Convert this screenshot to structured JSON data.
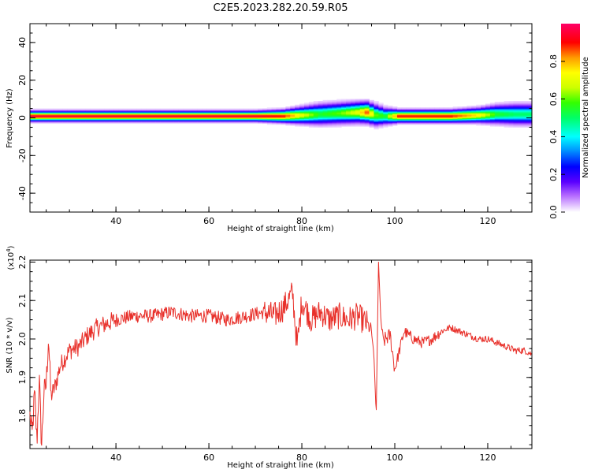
{
  "title": "C2E5.2023.282.20.59.R05",
  "colors": {
    "snr_line": "#e8302a",
    "background": "#ffffff"
  },
  "chart_data": [
    {
      "type": "heatmap",
      "title": "C2E5.2023.282.20.59.R05",
      "xlabel": "Height of straight line (km)",
      "ylabel": "Frequency (Hz)",
      "xlim": [
        21.5,
        129.5
      ],
      "ylim": [
        -50,
        50
      ],
      "xticks": [
        40,
        60,
        80,
        100,
        120
      ],
      "yticks": [
        40,
        20,
        0,
        -20,
        -40
      ],
      "colorbar": {
        "label": "Normalized spectral amplitude",
        "range": [
          0.0,
          1.0
        ],
        "ticks": [
          0.0,
          0.2,
          0.4,
          0.6,
          0.8
        ]
      },
      "ridge": [
        {
          "x": 22,
          "freq": 1,
          "halfwidth": 2.5,
          "peak": 0.95
        },
        {
          "x": 30,
          "freq": 1,
          "halfwidth": 2.5,
          "peak": 0.95
        },
        {
          "x": 40,
          "freq": 1,
          "halfwidth": 2.5,
          "peak": 0.95
        },
        {
          "x": 50,
          "freq": 1,
          "halfwidth": 2.5,
          "peak": 0.95
        },
        {
          "x": 60,
          "freq": 1,
          "halfwidth": 2.5,
          "peak": 0.95
        },
        {
          "x": 70,
          "freq": 1,
          "halfwidth": 2.5,
          "peak": 0.95
        },
        {
          "x": 76,
          "freq": 1,
          "halfwidth": 3,
          "peak": 0.9
        },
        {
          "x": 80,
          "freq": 1.5,
          "halfwidth": 4,
          "peak": 0.7
        },
        {
          "x": 84,
          "freq": 2,
          "halfwidth": 5,
          "peak": 0.55
        },
        {
          "x": 88,
          "freq": 2.5,
          "halfwidth": 5,
          "peak": 0.6
        },
        {
          "x": 92,
          "freq": 3,
          "halfwidth": 5,
          "peak": 0.7
        },
        {
          "x": 94,
          "freq": 3,
          "halfwidth": 5,
          "peak": 0.85
        },
        {
          "x": 96,
          "freq": 1.5,
          "halfwidth": 5,
          "peak": 0.6
        },
        {
          "x": 98,
          "freq": 1,
          "halfwidth": 4,
          "peak": 0.55
        },
        {
          "x": 101,
          "freq": 1,
          "halfwidth": 3,
          "peak": 0.9
        },
        {
          "x": 106,
          "freq": 1,
          "halfwidth": 3,
          "peak": 0.9
        },
        {
          "x": 112,
          "freq": 1,
          "halfwidth": 3,
          "peak": 0.9
        },
        {
          "x": 118,
          "freq": 1.5,
          "halfwidth": 3.5,
          "peak": 0.75
        },
        {
          "x": 122,
          "freq": 2,
          "halfwidth": 4.5,
          "peak": 0.55
        },
        {
          "x": 126,
          "freq": 2,
          "halfwidth": 5,
          "peak": 0.5
        },
        {
          "x": 129.5,
          "freq": 2,
          "halfwidth": 5,
          "peak": 0.5
        }
      ]
    },
    {
      "type": "line",
      "xlabel": "Height of straight line (km)",
      "ylabel": "SNR (10 * v/v)",
      "yscale_note": "(x10^4)",
      "xlim": [
        21.5,
        129.5
      ],
      "ylim": [
        1.715,
        2.205
      ],
      "xticks": [
        40,
        60,
        80,
        100,
        120
      ],
      "yticks": [
        1.8,
        1.9,
        2.0,
        2.1,
        2.2
      ],
      "series": [
        {
          "x": [
            21.5,
            22,
            22.5,
            23,
            23.5,
            24,
            24.5,
            25,
            25.5,
            26,
            27,
            28,
            30,
            32,
            34,
            36,
            38,
            40,
            44,
            48,
            52,
            56,
            60,
            64,
            68,
            72,
            74,
            76,
            78,
            79,
            80,
            82,
            84,
            86,
            88,
            90,
            92,
            94,
            95,
            95.5,
            96,
            96.5,
            97,
            97.5,
            98,
            99,
            100,
            102,
            104,
            106,
            108,
            110,
            112,
            114,
            116,
            118,
            120,
            122,
            124,
            126,
            128,
            129.5
          ],
          "y": [
            1.8,
            1.75,
            1.86,
            1.73,
            1.9,
            1.72,
            1.86,
            1.88,
            2.01,
            1.85,
            1.88,
            1.93,
            1.97,
            1.98,
            2.01,
            2.03,
            2.04,
            2.05,
            2.06,
            2.06,
            2.07,
            2.06,
            2.06,
            2.05,
            2.06,
            2.07,
            2.06,
            2.08,
            2.12,
            1.98,
            2.1,
            2.05,
            2.07,
            2.05,
            2.06,
            2.05,
            2.06,
            2.04,
            2.02,
            1.96,
            1.8,
            2.2,
            2.05,
            1.99,
            2.0,
            2.01,
            1.92,
            2.02,
            2.0,
            1.99,
            2.0,
            2.02,
            2.03,
            2.02,
            2.01,
            2.0,
            2.0,
            1.99,
            1.98,
            1.97,
            1.97,
            1.96
          ]
        }
      ]
    }
  ]
}
